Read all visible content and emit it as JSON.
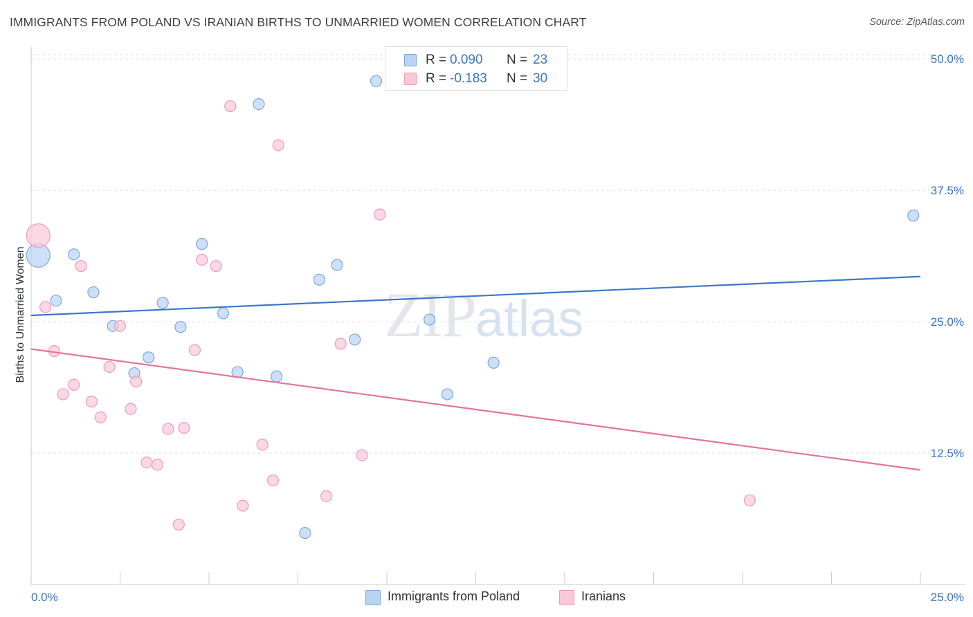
{
  "header": {
    "title": "IMMIGRANTS FROM POLAND VS IRANIAN BIRTHS TO UNMARRIED WOMEN CORRELATION CHART",
    "source": "Source: ZipAtlas.com"
  },
  "watermark": {
    "zip": "ZIP",
    "atlas": "atlas"
  },
  "stats": {
    "poland": {
      "r_label": "R = ",
      "r": "0.090",
      "n_label": "N = ",
      "n": "23"
    },
    "iranians": {
      "r_label": "R = ",
      "r": "-0.183",
      "n_label": "N = ",
      "n": "30"
    }
  },
  "legend": {
    "poland": "Immigrants from Poland",
    "iranians": "Iranians"
  },
  "colors": {
    "poland_fill": "#b9d3f3",
    "poland_stroke": "#7aa7e0",
    "poland_line": "#3a78c9",
    "iranians_fill": "#f9c9d8",
    "iranians_stroke": "#ee9ab5",
    "iranians_line": "#e4739b",
    "tick_text": "#3a73c4",
    "grid": "#d9dce1"
  },
  "chart_data": {
    "type": "scatter",
    "title": "IMMIGRANTS FROM POLAND VS IRANIAN BIRTHS TO UNMARRIED WOMEN CORRELATION CHART",
    "ylabel": "Births to Unmarried Women",
    "xlabel": "",
    "xlim": [
      0,
      25
    ],
    "ylim": [
      0,
      51
    ],
    "x_tick_labels": [
      "0.0%",
      "25.0%"
    ],
    "y_ticks": [
      12.5,
      25.0,
      37.5,
      50.0
    ],
    "y_tick_labels": [
      "12.5%",
      "25.0%",
      "37.5%",
      "50.0%"
    ],
    "grid": "horizontal dashed",
    "legend_position": "bottom-center",
    "series": [
      {
        "name": "Immigrants from Poland",
        "points": [
          {
            "x": 0.2,
            "y": 31.3,
            "big": true
          },
          {
            "x": 0.7,
            "y": 27.0
          },
          {
            "x": 1.2,
            "y": 31.4
          },
          {
            "x": 1.75,
            "y": 27.8
          },
          {
            "x": 2.3,
            "y": 24.6
          },
          {
            "x": 2.9,
            "y": 20.1
          },
          {
            "x": 3.3,
            "y": 21.6
          },
          {
            "x": 3.7,
            "y": 26.8
          },
          {
            "x": 4.2,
            "y": 24.5
          },
          {
            "x": 4.8,
            "y": 32.4
          },
          {
            "x": 5.4,
            "y": 25.8
          },
          {
            "x": 5.8,
            "y": 20.2
          },
          {
            "x": 6.4,
            "y": 45.7
          },
          {
            "x": 6.9,
            "y": 19.8
          },
          {
            "x": 7.7,
            "y": 4.9
          },
          {
            "x": 8.1,
            "y": 29.0
          },
          {
            "x": 8.6,
            "y": 30.4
          },
          {
            "x": 9.1,
            "y": 23.3
          },
          {
            "x": 9.7,
            "y": 47.9
          },
          {
            "x": 11.2,
            "y": 25.2
          },
          {
            "x": 11.7,
            "y": 18.1
          },
          {
            "x": 13.0,
            "y": 21.1
          },
          {
            "x": 24.8,
            "y": 35.1
          }
        ],
        "trend": {
          "x": [
            0,
            25
          ],
          "y": [
            25.6,
            29.3
          ]
        }
      },
      {
        "name": "Iranians",
        "points": [
          {
            "x": 0.2,
            "y": 33.2,
            "big": true
          },
          {
            "x": 0.4,
            "y": 26.4
          },
          {
            "x": 0.65,
            "y": 22.2
          },
          {
            "x": 0.9,
            "y": 18.1
          },
          {
            "x": 1.2,
            "y": 19.0
          },
          {
            "x": 1.4,
            "y": 30.3
          },
          {
            "x": 1.7,
            "y": 17.4
          },
          {
            "x": 1.95,
            "y": 15.9
          },
          {
            "x": 2.2,
            "y": 20.7
          },
          {
            "x": 2.5,
            "y": 24.6
          },
          {
            "x": 2.8,
            "y": 16.7
          },
          {
            "x": 2.95,
            "y": 19.3
          },
          {
            "x": 3.25,
            "y": 11.6
          },
          {
            "x": 3.55,
            "y": 11.4
          },
          {
            "x": 3.85,
            "y": 14.8
          },
          {
            "x": 4.15,
            "y": 5.7
          },
          {
            "x": 4.3,
            "y": 14.9
          },
          {
            "x": 4.6,
            "y": 22.3
          },
          {
            "x": 4.8,
            "y": 30.9
          },
          {
            "x": 5.2,
            "y": 30.3
          },
          {
            "x": 5.6,
            "y": 45.5
          },
          {
            "x": 5.95,
            "y": 7.5
          },
          {
            "x": 6.5,
            "y": 13.3
          },
          {
            "x": 6.8,
            "y": 9.9
          },
          {
            "x": 6.95,
            "y": 41.8
          },
          {
            "x": 8.3,
            "y": 8.4
          },
          {
            "x": 8.7,
            "y": 22.9
          },
          {
            "x": 9.3,
            "y": 12.3
          },
          {
            "x": 9.8,
            "y": 35.2
          },
          {
            "x": 20.2,
            "y": 8.0
          }
        ],
        "trend": {
          "x": [
            0,
            25
          ],
          "y": [
            22.4,
            10.9
          ]
        }
      }
    ]
  }
}
